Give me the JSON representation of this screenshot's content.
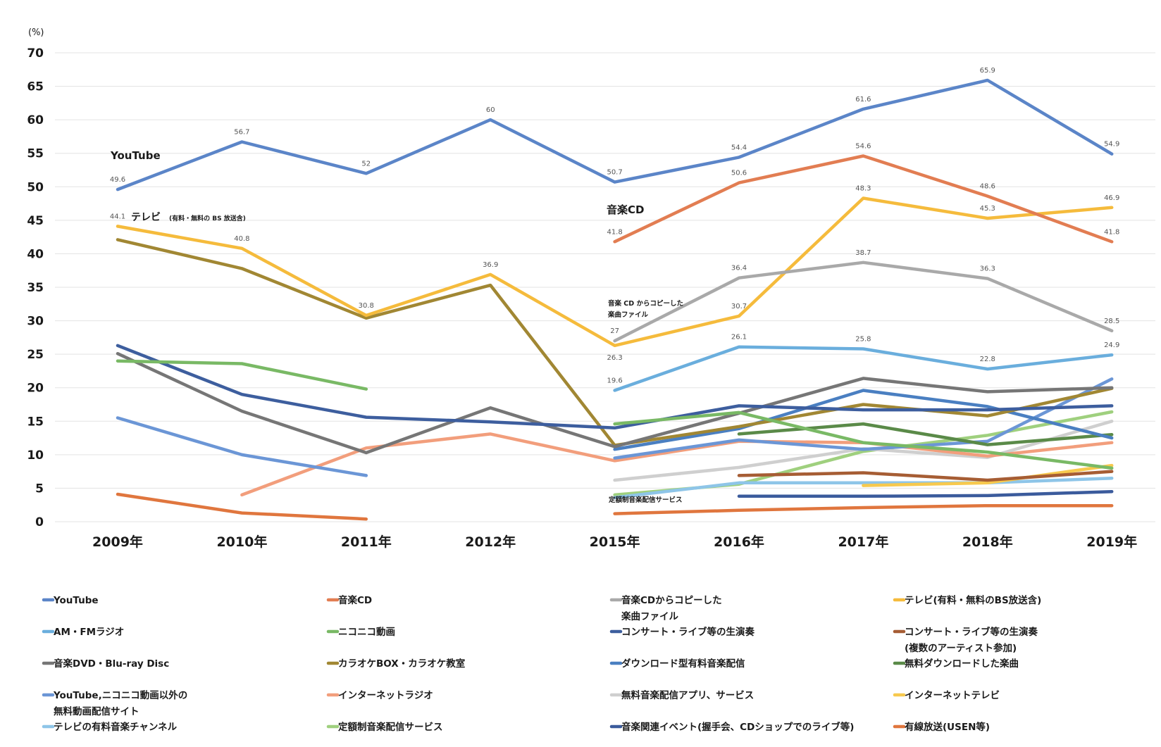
{
  "chart_data": {
    "type": "line",
    "title": "",
    "xlabel": "",
    "ylabel": "(%)",
    "ylim": [
      0,
      70
    ],
    "yticks": [
      0,
      5,
      10,
      15,
      20,
      25,
      30,
      35,
      40,
      45,
      50,
      55,
      60,
      65,
      70
    ],
    "grid": true,
    "legend_position": "bottom",
    "x": [
      "2009年",
      "2010年",
      "2011年",
      "2012年",
      "2015年",
      "2016年",
      "2017年",
      "2018年",
      "2019年"
    ],
    "series": [
      {
        "name": "YouTube",
        "color": "#5b85c8",
        "values": [
          49.6,
          56.7,
          52,
          60,
          50.7,
          54.4,
          61.6,
          65.9,
          54.9
        ],
        "labels": [
          true,
          true,
          true,
          true,
          true,
          true,
          true,
          true,
          true
        ]
      },
      {
        "name": "音楽CD",
        "color": "#e27d52",
        "values": [
          null,
          null,
          null,
          null,
          41.8,
          50.6,
          54.6,
          48.6,
          41.8
        ],
        "labels": [
          false,
          false,
          false,
          false,
          true,
          true,
          true,
          true,
          true
        ]
      },
      {
        "name": "音楽CDからコピーした楽曲ファイル",
        "color": "#a9a9a9",
        "values": [
          null,
          null,
          null,
          null,
          27,
          36.4,
          38.7,
          36.3,
          28.5
        ],
        "labels": [
          false,
          false,
          false,
          false,
          true,
          true,
          true,
          true,
          true
        ]
      },
      {
        "name": "テレビ(有料・無料のBS放送含)",
        "color": "#f5bb3c",
        "values": [
          44.1,
          40.8,
          30.8,
          36.9,
          26.3,
          30.7,
          48.3,
          45.3,
          46.9
        ],
        "labels": [
          true,
          true,
          true,
          true,
          true,
          true,
          true,
          true,
          true
        ]
      },
      {
        "name": "AM・FMラジオ",
        "color": "#6aaedd",
        "values": [
          null,
          null,
          null,
          null,
          19.6,
          26.1,
          25.8,
          22.8,
          24.9
        ],
        "labels": [
          false,
          false,
          false,
          false,
          true,
          true,
          true,
          true,
          true
        ]
      },
      {
        "name": "ニコニコ動画",
        "color": "#79b965",
        "values": [
          24,
          23.6,
          19.8,
          null,
          14.6,
          16.3,
          11.8,
          10.4,
          8
        ],
        "labels": []
      },
      {
        "name": "コンサート・ライブ等の生演奏",
        "color": "#3d5e9e",
        "values": [
          26.3,
          19,
          15.6,
          14.9,
          14,
          17.3,
          16.7,
          16.7,
          17.3
        ],
        "labels": []
      },
      {
        "name": "コンサート・ライブ等の生演奏(複数のアーティスト参加)",
        "color": "#a65d34",
        "values": [
          null,
          null,
          null,
          null,
          null,
          6.9,
          7.3,
          6.2,
          7.5
        ],
        "labels": []
      },
      {
        "name": "音楽DVD・Blu-ray Disc",
        "color": "#767676",
        "values": [
          25.1,
          16.5,
          10.3,
          17,
          11.2,
          16.2,
          21.4,
          19.4,
          20
        ],
        "labels": []
      },
      {
        "name": "カラオケBOX・カラオケ教室",
        "color": "#a18733",
        "values": [
          42.1,
          37.8,
          30.4,
          35.3,
          11.4,
          14.2,
          17.5,
          15.8,
          19.9
        ],
        "labels": []
      },
      {
        "name": "ダウンロード型有料音楽配信",
        "color": "#4a7fc1",
        "values": [
          null,
          null,
          null,
          null,
          10.8,
          13.9,
          19.6,
          17.2,
          12.5
        ],
        "labels": []
      },
      {
        "name": "無料ダウンロードした楽曲",
        "color": "#5a8a48",
        "values": [
          null,
          null,
          null,
          null,
          null,
          13.1,
          14.6,
          11.5,
          13
        ],
        "labels": []
      },
      {
        "name": "YouTube,ニコニコ動画以外の無料動画配信サイト",
        "color": "#6b96d6",
        "values": [
          15.5,
          10,
          6.9,
          null,
          9.5,
          12.2,
          10.8,
          12,
          21.3
        ],
        "labels": []
      },
      {
        "name": "インターネットラジオ",
        "color": "#f29e7c",
        "values": [
          null,
          4,
          11,
          13.1,
          9.1,
          12,
          11.8,
          9.8,
          11.8
        ],
        "labels": []
      },
      {
        "name": "無料音楽配信アプリ、サービス",
        "color": "#cfcfcf",
        "values": [
          null,
          null,
          null,
          null,
          6.2,
          8.1,
          10.9,
          9.6,
          15
        ],
        "labels": []
      },
      {
        "name": "インターネットテレビ",
        "color": "#f7c94e",
        "values": [
          null,
          null,
          null,
          null,
          null,
          null,
          5.4,
          5.8,
          8.4
        ],
        "labels": []
      },
      {
        "name": "テレビの有料音楽チャンネル",
        "color": "#8ec5e8",
        "values": [
          null,
          null,
          null,
          null,
          3.6,
          5.8,
          5.8,
          5.8,
          6.5
        ],
        "labels": []
      },
      {
        "name": "定額制音楽配信サービス",
        "color": "#9fd07e",
        "values": [
          null,
          null,
          null,
          null,
          4,
          5.6,
          10.5,
          12.9,
          16.4
        ],
        "labels": []
      },
      {
        "name": "音楽関連イベント(握手会、CDショップでのライブ等)",
        "color": "#3b5b9c",
        "values": [
          null,
          null,
          null,
          null,
          null,
          3.8,
          3.8,
          3.9,
          4.5
        ],
        "labels": []
      },
      {
        "name": "有線放送(USEN等)",
        "color": "#e0763e",
        "values": [
          4.1,
          1.3,
          0.4,
          null,
          1.2,
          1.7,
          2.1,
          2.4,
          2.4
        ],
        "labels": []
      }
    ],
    "annotations": {
      "youtube": "YouTube",
      "tv_main": "テレビ",
      "tv_sub": "(有料・無料の BS 放送含)",
      "cd": "音楽CD",
      "copy_line1": "音楽 CD からコピーした",
      "copy_line2": "楽曲ファイル",
      "subscription": "定額制音楽配信サービス"
    },
    "legend": [
      {
        "lines": [
          "YouTube"
        ],
        "color": "#5b85c8"
      },
      {
        "lines": [
          "音楽CD"
        ],
        "color": "#e27d52"
      },
      {
        "lines": [
          "音楽CDからコピーした",
          "楽曲ファイル"
        ],
        "color": "#a9a9a9"
      },
      {
        "lines": [
          "テレビ(有料・無料のBS放送含)"
        ],
        "color": "#f5bb3c"
      },
      {
        "lines": [
          "AM・FMラジオ"
        ],
        "color": "#6aaedd"
      },
      {
        "lines": [
          "ニコニコ動画"
        ],
        "color": "#79b965"
      },
      {
        "lines": [
          "コンサート・ライブ等の生演奏"
        ],
        "color": "#3d5e9e"
      },
      {
        "lines": [
          "コンサート・ライブ等の生演奏",
          "(複数のアーティスト参加)"
        ],
        "color": "#a65d34"
      },
      {
        "lines": [
          "音楽DVD・Blu-ray Disc"
        ],
        "color": "#767676"
      },
      {
        "lines": [
          "カラオケBOX・カラオケ教室"
        ],
        "color": "#a18733"
      },
      {
        "lines": [
          "ダウンロード型有料音楽配信"
        ],
        "color": "#4a7fc1"
      },
      {
        "lines": [
          "無料ダウンロードした楽曲"
        ],
        "color": "#5a8a48"
      },
      {
        "lines": [
          "YouTube,ニコニコ動画以外の",
          "無料動画配信サイト"
        ],
        "color": "#6b96d6"
      },
      {
        "lines": [
          "インターネットラジオ"
        ],
        "color": "#f29e7c"
      },
      {
        "lines": [
          "無料音楽配信アプリ、サービス"
        ],
        "color": "#cfcfcf"
      },
      {
        "lines": [
          "インターネットテレビ"
        ],
        "color": "#f7c94e"
      },
      {
        "lines": [
          "テレビの有料音楽チャンネル"
        ],
        "color": "#8ec5e8"
      },
      {
        "lines": [
          "定額制音楽配信サービス"
        ],
        "color": "#9fd07e"
      },
      {
        "lines": [
          "音楽関連イベント(握手会、CDショップでのライブ等)"
        ],
        "color": "#3b5b9c"
      },
      {
        "lines": [
          "有線放送(USEN等)"
        ],
        "color": "#e0763e"
      }
    ]
  }
}
